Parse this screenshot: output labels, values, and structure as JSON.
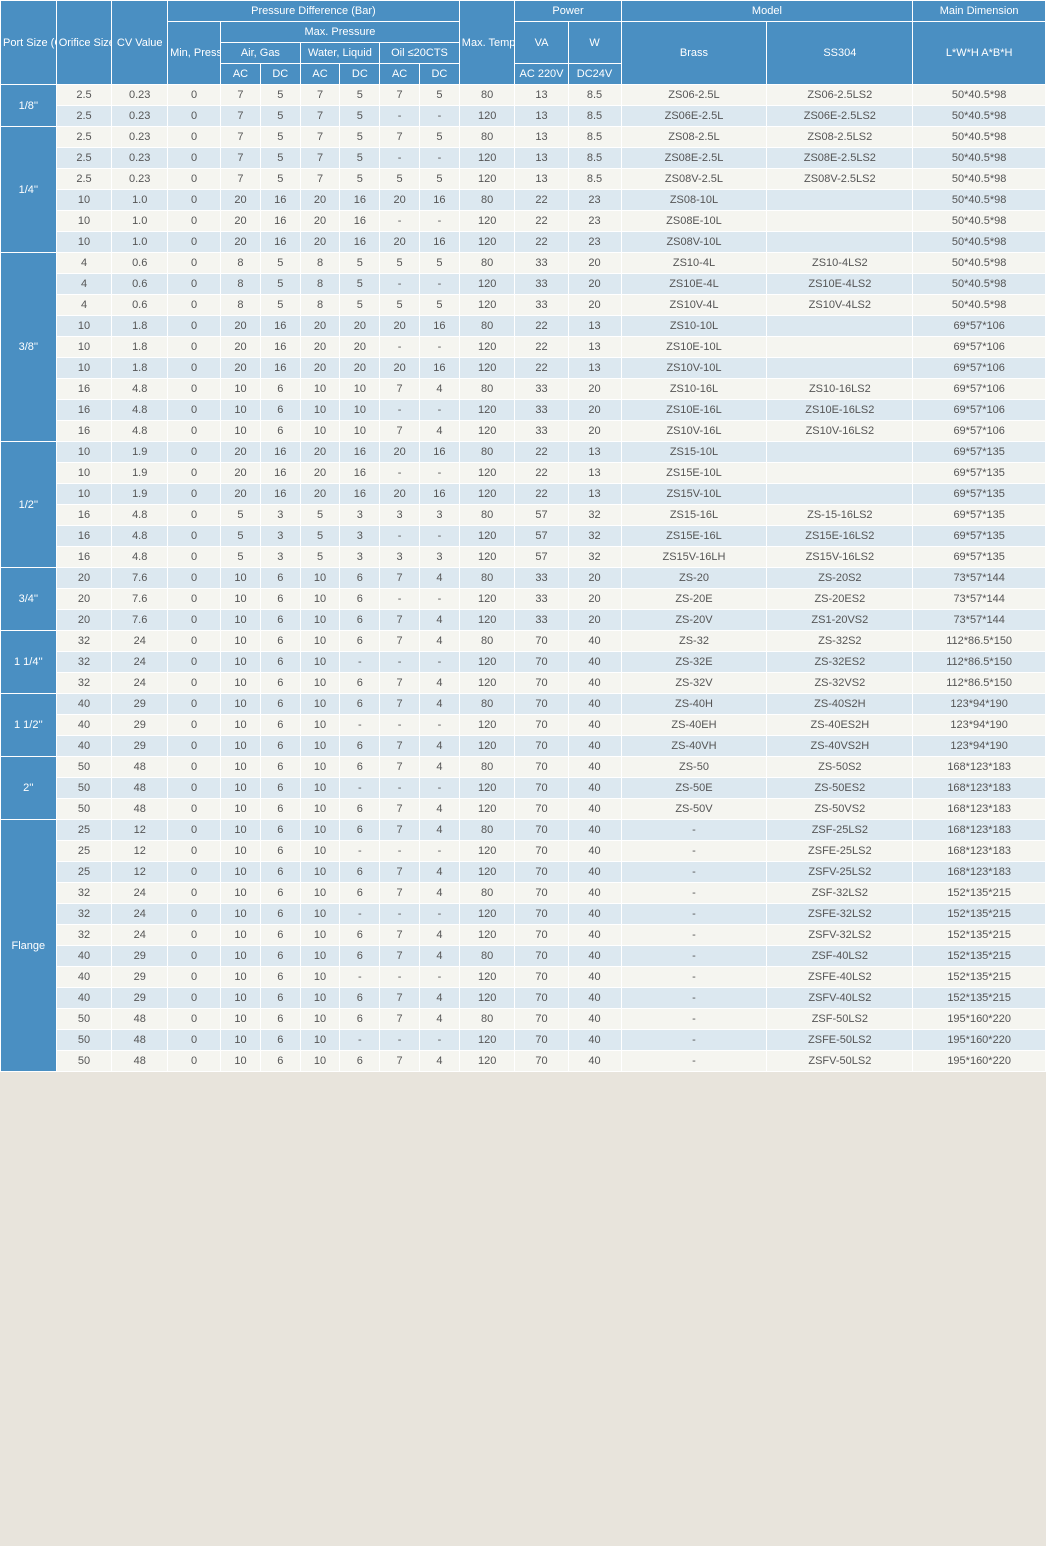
{
  "headers": {
    "port": "Port Size (G)",
    "orifice": "Orifice Size (mm)",
    "cv": "CV Value",
    "pd": "Pressure Difference (Bar)",
    "min": "Min, Pressure",
    "max": "Max. Pressure",
    "air": "Air, Gas",
    "water": "Water, Liquid",
    "oil": "Oil ≤20CTS",
    "ac": "AC",
    "dc": "DC",
    "temp": "Max. Temp. (℃)",
    "power": "Power",
    "va": "VA",
    "w": "W",
    "va2": "AC 220V",
    "w2": "DC24V",
    "model": "Model",
    "brass": "Brass",
    "ss": "SS304",
    "dim": "Main Dimension",
    "dim2": "L*W*H A*B*H"
  },
  "groups": [
    {
      "port": "1/8''",
      "rows": [
        {
          "d": [
            "2.5",
            "0.23",
            "0",
            "7",
            "5",
            "7",
            "5",
            "7",
            "5",
            "80",
            "13",
            "8.5",
            "ZS06-2.5L",
            "ZS06-2.5LS2",
            "50*40.5*98"
          ]
        },
        {
          "d": [
            "2.5",
            "0.23",
            "0",
            "7",
            "5",
            "7",
            "5",
            "-",
            "-",
            "120",
            "13",
            "8.5",
            "ZS06E-2.5L",
            "ZS06E-2.5LS2",
            "50*40.5*98"
          ]
        }
      ]
    },
    {
      "port": "1/4''",
      "rows": [
        {
          "d": [
            "2.5",
            "0.23",
            "0",
            "7",
            "5",
            "7",
            "5",
            "7",
            "5",
            "80",
            "13",
            "8.5",
            "ZS08-2.5L",
            "ZS08-2.5LS2",
            "50*40.5*98"
          ]
        },
        {
          "d": [
            "2.5",
            "0.23",
            "0",
            "7",
            "5",
            "7",
            "5",
            "-",
            "-",
            "120",
            "13",
            "8.5",
            "ZS08E-2.5L",
            "ZS08E-2.5LS2",
            "50*40.5*98"
          ]
        },
        {
          "d": [
            "2.5",
            "0.23",
            "0",
            "7",
            "5",
            "7",
            "5",
            "5",
            "5",
            "120",
            "13",
            "8.5",
            "ZS08V-2.5L",
            "ZS08V-2.5LS2",
            "50*40.5*98"
          ]
        },
        {
          "d": [
            "10",
            "1.0",
            "0",
            "20",
            "16",
            "20",
            "16",
            "20",
            "16",
            "80",
            "22",
            "23",
            "ZS08-10L",
            "",
            "50*40.5*98"
          ]
        },
        {
          "d": [
            "10",
            "1.0",
            "0",
            "20",
            "16",
            "20",
            "16",
            "-",
            "-",
            "120",
            "22",
            "23",
            "ZS08E-10L",
            "",
            "50*40.5*98"
          ]
        },
        {
          "d": [
            "10",
            "1.0",
            "0",
            "20",
            "16",
            "20",
            "16",
            "20",
            "16",
            "120",
            "22",
            "23",
            "ZS08V-10L",
            "",
            "50*40.5*98"
          ]
        }
      ]
    },
    {
      "port": "3/8''",
      "rows": [
        {
          "d": [
            "4",
            "0.6",
            "0",
            "8",
            "5",
            "8",
            "5",
            "5",
            "5",
            "80",
            "33",
            "20",
            "ZS10-4L",
            "ZS10-4LS2",
            "50*40.5*98"
          ]
        },
        {
          "d": [
            "4",
            "0.6",
            "0",
            "8",
            "5",
            "8",
            "5",
            "-",
            "-",
            "120",
            "33",
            "20",
            "ZS10E-4L",
            "ZS10E-4LS2",
            "50*40.5*98"
          ]
        },
        {
          "d": [
            "4",
            "0.6",
            "0",
            "8",
            "5",
            "8",
            "5",
            "5",
            "5",
            "120",
            "33",
            "20",
            "ZS10V-4L",
            "ZS10V-4LS2",
            "50*40.5*98"
          ]
        },
        {
          "d": [
            "10",
            "1.8",
            "0",
            "20",
            "16",
            "20",
            "20",
            "20",
            "16",
            "80",
            "22",
            "13",
            "ZS10-10L",
            "",
            "69*57*106"
          ]
        },
        {
          "d": [
            "10",
            "1.8",
            "0",
            "20",
            "16",
            "20",
            "20",
            "-",
            "-",
            "120",
            "22",
            "13",
            "ZS10E-10L",
            "",
            "69*57*106"
          ]
        },
        {
          "d": [
            "10",
            "1.8",
            "0",
            "20",
            "16",
            "20",
            "20",
            "20",
            "16",
            "120",
            "22",
            "13",
            "ZS10V-10L",
            "",
            "69*57*106"
          ]
        },
        {
          "d": [
            "16",
            "4.8",
            "0",
            "10",
            "6",
            "10",
            "10",
            "7",
            "4",
            "80",
            "33",
            "20",
            "ZS10-16L",
            "ZS10-16LS2",
            "69*57*106"
          ]
        },
        {
          "d": [
            "16",
            "4.8",
            "0",
            "10",
            "6",
            "10",
            "10",
            "-",
            "-",
            "120",
            "33",
            "20",
            "ZS10E-16L",
            "ZS10E-16LS2",
            "69*57*106"
          ]
        },
        {
          "d": [
            "16",
            "4.8",
            "0",
            "10",
            "6",
            "10",
            "10",
            "7",
            "4",
            "120",
            "33",
            "20",
            "ZS10V-16L",
            "ZS10V-16LS2",
            "69*57*106"
          ]
        }
      ]
    },
    {
      "port": "1/2''",
      "rows": [
        {
          "d": [
            "10",
            "1.9",
            "0",
            "20",
            "16",
            "20",
            "16",
            "20",
            "16",
            "80",
            "22",
            "13",
            "ZS15-10L",
            "",
            "69*57*135"
          ]
        },
        {
          "d": [
            "10",
            "1.9",
            "0",
            "20",
            "16",
            "20",
            "16",
            "-",
            "-",
            "120",
            "22",
            "13",
            "ZS15E-10L",
            "",
            "69*57*135"
          ]
        },
        {
          "d": [
            "10",
            "1.9",
            "0",
            "20",
            "16",
            "20",
            "16",
            "20",
            "16",
            "120",
            "22",
            "13",
            "ZS15V-10L",
            "",
            "69*57*135"
          ]
        },
        {
          "d": [
            "16",
            "4.8",
            "0",
            "5",
            "3",
            "5",
            "3",
            "3",
            "3",
            "80",
            "57",
            "32",
            "ZS15-16L",
            "ZS-15-16LS2",
            "69*57*135"
          ]
        },
        {
          "d": [
            "16",
            "4.8",
            "0",
            "5",
            "3",
            "5",
            "3",
            "-",
            "-",
            "120",
            "57",
            "32",
            "ZS15E-16L",
            "ZS15E-16LS2",
            "69*57*135"
          ]
        },
        {
          "d": [
            "16",
            "4.8",
            "0",
            "5",
            "3",
            "5",
            "3",
            "3",
            "3",
            "120",
            "57",
            "32",
            "ZS15V-16LH",
            "ZS15V-16LS2",
            "69*57*135"
          ]
        }
      ]
    },
    {
      "port": "3/4''",
      "rows": [
        {
          "d": [
            "20",
            "7.6",
            "0",
            "10",
            "6",
            "10",
            "6",
            "7",
            "4",
            "80",
            "33",
            "20",
            "ZS-20",
            "ZS-20S2",
            "73*57*144"
          ]
        },
        {
          "d": [
            "20",
            "7.6",
            "0",
            "10",
            "6",
            "10",
            "6",
            "-",
            "-",
            "120",
            "33",
            "20",
            "ZS-20E",
            "ZS-20ES2",
            "73*57*144"
          ]
        },
        {
          "d": [
            "20",
            "7.6",
            "0",
            "10",
            "6",
            "10",
            "6",
            "7",
            "4",
            "120",
            "33",
            "20",
            "ZS-20V",
            "ZS1-20VS2",
            "73*57*144"
          ]
        }
      ]
    },
    {
      "port": "1 1/4''",
      "rows": [
        {
          "d": [
            "32",
            "24",
            "0",
            "10",
            "6",
            "10",
            "6",
            "7",
            "4",
            "80",
            "70",
            "40",
            "ZS-32",
            "ZS-32S2",
            "112*86.5*150"
          ]
        },
        {
          "d": [
            "32",
            "24",
            "0",
            "10",
            "6",
            "10",
            "-",
            "-",
            "-",
            "120",
            "70",
            "40",
            "ZS-32E",
            "ZS-32ES2",
            "112*86.5*150"
          ]
        },
        {
          "d": [
            "32",
            "24",
            "0",
            "10",
            "6",
            "10",
            "6",
            "7",
            "4",
            "120",
            "70",
            "40",
            "ZS-32V",
            "ZS-32VS2",
            "112*86.5*150"
          ]
        }
      ]
    },
    {
      "port": "1 1/2''",
      "rows": [
        {
          "d": [
            "40",
            "29",
            "0",
            "10",
            "6",
            "10",
            "6",
            "7",
            "4",
            "80",
            "70",
            "40",
            "ZS-40H",
            "ZS-40S2H",
            "123*94*190"
          ]
        },
        {
          "d": [
            "40",
            "29",
            "0",
            "10",
            "6",
            "10",
            "-",
            "-",
            "-",
            "120",
            "70",
            "40",
            "ZS-40EH",
            "ZS-40ES2H",
            "123*94*190"
          ]
        },
        {
          "d": [
            "40",
            "29",
            "0",
            "10",
            "6",
            "10",
            "6",
            "7",
            "4",
            "120",
            "70",
            "40",
            "ZS-40VH",
            "ZS-40VS2H",
            "123*94*190"
          ]
        }
      ]
    },
    {
      "port": "2''",
      "rows": [
        {
          "d": [
            "50",
            "48",
            "0",
            "10",
            "6",
            "10",
            "6",
            "7",
            "4",
            "80",
            "70",
            "40",
            "ZS-50",
            "ZS-50S2",
            "168*123*183"
          ]
        },
        {
          "d": [
            "50",
            "48",
            "0",
            "10",
            "6",
            "10",
            "-",
            "-",
            "-",
            "120",
            "70",
            "40",
            "ZS-50E",
            "ZS-50ES2",
            "168*123*183"
          ]
        },
        {
          "d": [
            "50",
            "48",
            "0",
            "10",
            "6",
            "10",
            "6",
            "7",
            "4",
            "120",
            "70",
            "40",
            "ZS-50V",
            "ZS-50VS2",
            "168*123*183"
          ]
        }
      ]
    },
    {
      "port": "Flange",
      "rows": [
        {
          "d": [
            "25",
            "12",
            "0",
            "10",
            "6",
            "10",
            "6",
            "7",
            "4",
            "80",
            "70",
            "40",
            "-",
            "ZSF-25LS2",
            "168*123*183"
          ]
        },
        {
          "d": [
            "25",
            "12",
            "0",
            "10",
            "6",
            "10",
            "-",
            "-",
            "-",
            "120",
            "70",
            "40",
            "-",
            "ZSFE-25LS2",
            "168*123*183"
          ]
        },
        {
          "d": [
            "25",
            "12",
            "0",
            "10",
            "6",
            "10",
            "6",
            "7",
            "4",
            "120",
            "70",
            "40",
            "-",
            "ZSFV-25LS2",
            "168*123*183"
          ]
        },
        {
          "d": [
            "32",
            "24",
            "0",
            "10",
            "6",
            "10",
            "6",
            "7",
            "4",
            "80",
            "70",
            "40",
            "-",
            "ZSF-32LS2",
            "152*135*215"
          ]
        },
        {
          "d": [
            "32",
            "24",
            "0",
            "10",
            "6",
            "10",
            "-",
            "-",
            "-",
            "120",
            "70",
            "40",
            "-",
            "ZSFE-32LS2",
            "152*135*215"
          ]
        },
        {
          "d": [
            "32",
            "24",
            "0",
            "10",
            "6",
            "10",
            "6",
            "7",
            "4",
            "120",
            "70",
            "40",
            "-",
            "ZSFV-32LS2",
            "152*135*215"
          ]
        },
        {
          "d": [
            "40",
            "29",
            "0",
            "10",
            "6",
            "10",
            "6",
            "7",
            "4",
            "80",
            "70",
            "40",
            "-",
            "ZSF-40LS2",
            "152*135*215"
          ]
        },
        {
          "d": [
            "40",
            "29",
            "0",
            "10",
            "6",
            "10",
            "-",
            "-",
            "-",
            "120",
            "70",
            "40",
            "-",
            "ZSFE-40LS2",
            "152*135*215"
          ]
        },
        {
          "d": [
            "40",
            "29",
            "0",
            "10",
            "6",
            "10",
            "6",
            "7",
            "4",
            "120",
            "70",
            "40",
            "-",
            "ZSFV-40LS2",
            "152*135*215"
          ]
        },
        {
          "d": [
            "50",
            "48",
            "0",
            "10",
            "6",
            "10",
            "6",
            "7",
            "4",
            "80",
            "70",
            "40",
            "-",
            "ZSF-50LS2",
            "195*160*220"
          ]
        },
        {
          "d": [
            "50",
            "48",
            "0",
            "10",
            "6",
            "10",
            "-",
            "-",
            "-",
            "120",
            "70",
            "40",
            "-",
            "ZSFE-50LS2",
            "195*160*220"
          ]
        },
        {
          "d": [
            "50",
            "48",
            "0",
            "10",
            "6",
            "10",
            "6",
            "7",
            "4",
            "120",
            "70",
            "40",
            "-",
            "ZSFV-50LS2",
            "195*160*220"
          ]
        }
      ]
    }
  ]
}
